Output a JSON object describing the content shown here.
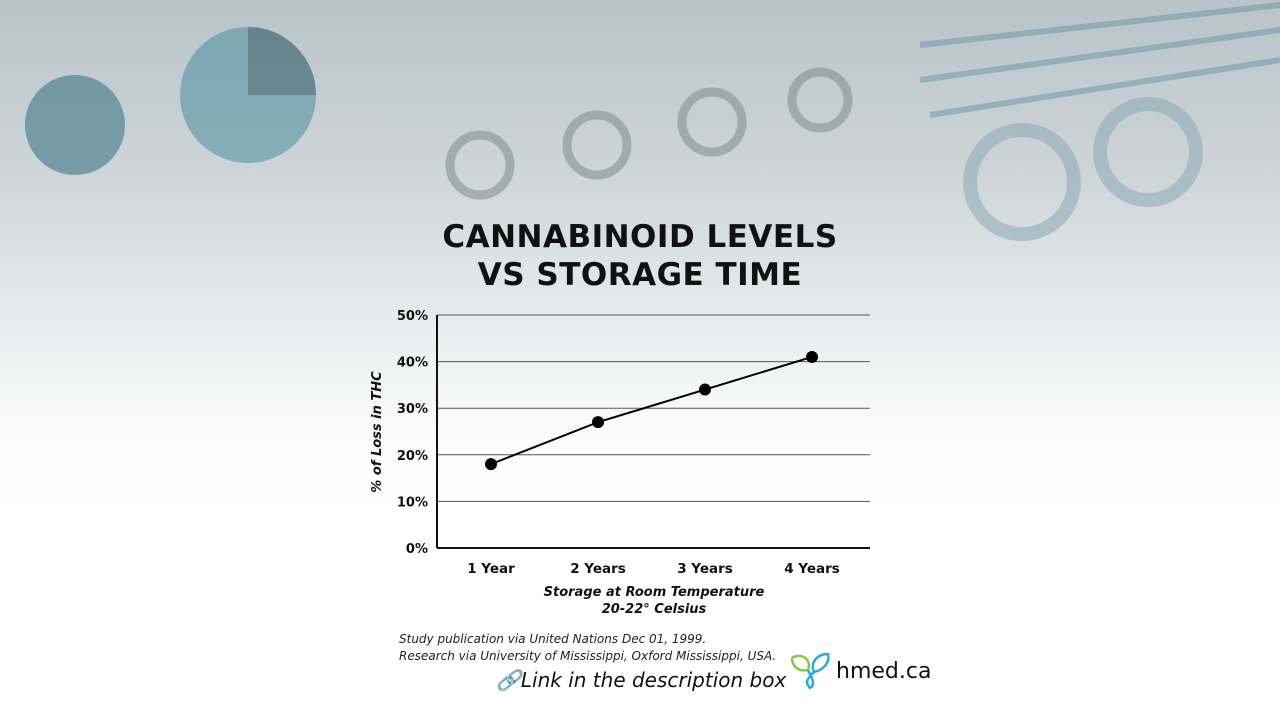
{
  "title_lines": [
    "CANNABINOID LEVELS",
    "VS STORAGE TIME"
  ],
  "chart_data": {
    "type": "line",
    "title": "CANNABINOID LEVELS VS STORAGE TIME",
    "categories": [
      "1 Year",
      "2 Years",
      "3 Years",
      "4 Years"
    ],
    "values": [
      18,
      27,
      34,
      41
    ],
    "ylabel": "% of Loss in THC",
    "xlabel": [
      "Storage at Room Temperature",
      "20-22° Celsius"
    ],
    "ylim": [
      0,
      50
    ],
    "yticks": [
      "0%",
      "10%",
      "20%",
      "30%",
      "40%",
      "50%"
    ],
    "grid": true,
    "color": "#000000"
  },
  "footer": {
    "source_lines": [
      "Study publication via United Nations Dec 01, 1999.",
      "Research via University of Mississippi, Oxford Mississippi, USA."
    ],
    "link_text": "Link in the description box",
    "link_icon": "link-icon",
    "brand": "hmed.ca",
    "brand_colors": [
      "#8cc63f",
      "#29abe2"
    ]
  }
}
